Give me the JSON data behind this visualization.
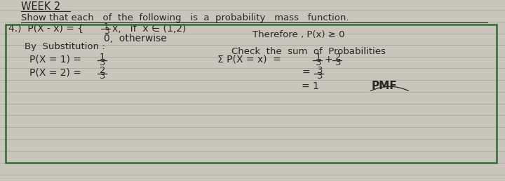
{
  "bg_color": "#c8c5bc",
  "box_border_color": "#2d6b2d",
  "text_color": "#2a2520",
  "line_color": "#aaa89f",
  "title": "WEEK 2",
  "subtitle": "Show that each   of  the  following   is  a  probability   mass   function.",
  "prob_lhs": "4.)  P(X - x) =",
  "prob_rhs_top": "¹⁄₃x,   if  x ∈ (1,2)",
  "prob_rhs_bot": "0,  otherwise",
  "therefore": "Therefore , P(x) ≥ 0",
  "by_sub": "By  Substitution :",
  "check": "Check  the  sum  of  Probabilities",
  "px1_lhs": "P(X = 1) =",
  "px1_rhs": "1",
  "px1_den": "3",
  "px2_lhs": "P(X = 2) =",
  "px2_rhs": "2",
  "px2_den": "3",
  "sum_lhs": "Σ P(X = x)  =",
  "sum_rhs": "1",
  "sum_den": "3",
  "sum_plus": "+",
  "sum_rhs2": "2",
  "sum_den2": "3",
  "eq2_rhs": "3",
  "eq2_den": "3",
  "eq3": "= 1",
  "pmf": "PMF",
  "figsize": [
    7.2,
    2.58
  ],
  "dpi": 100
}
